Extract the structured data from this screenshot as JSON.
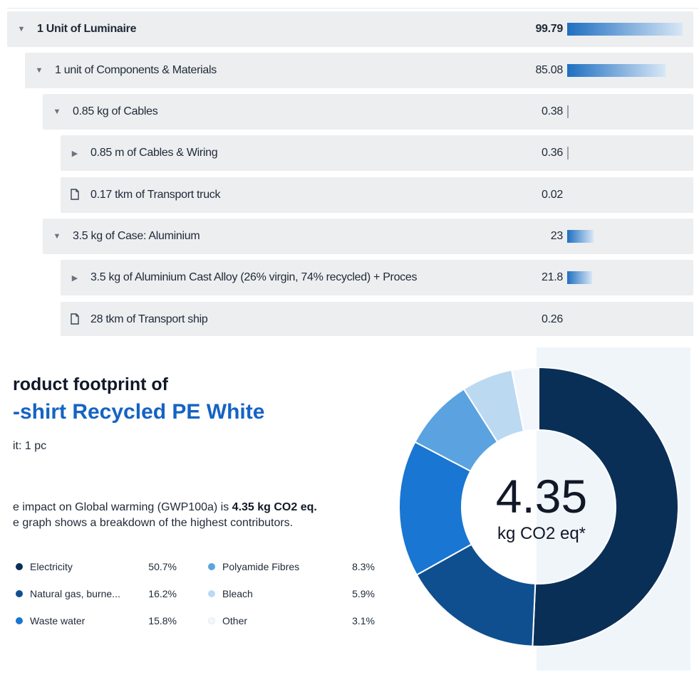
{
  "tree": {
    "rows": [
      {
        "label": "1 Unit of Luminaire",
        "value": "99.79",
        "toggle": "expanded",
        "bold": true,
        "level": 0,
        "bar_fraction": 0.9979
      },
      {
        "label": "1 unit of Components & Materials",
        "value": "85.08",
        "toggle": "expanded",
        "bold": false,
        "level": 1,
        "bar_fraction": 0.8508
      },
      {
        "label": "0.85 kg of Cables",
        "value": "0.38",
        "toggle": "expanded",
        "bold": false,
        "level": 2,
        "bar_fraction": 0.0038
      },
      {
        "label": "0.85 m of Cables & Wiring",
        "value": "0.36",
        "toggle": "collapsed",
        "bold": false,
        "level": 3,
        "bar_fraction": 0.0036
      },
      {
        "label": "0.17 tkm of Transport truck",
        "value": "0.02",
        "toggle": "leaf",
        "bold": false,
        "level": 3,
        "bar_fraction": 0
      },
      {
        "label": "3.5 kg of Case: Aluminium",
        "value": "23",
        "toggle": "expanded",
        "bold": false,
        "level": 2,
        "bar_fraction": 0.23
      },
      {
        "label": "3.5 kg of Aluminium Cast Alloy (26% virgin, 74% recycled) + Proces",
        "value": "21.8",
        "toggle": "collapsed",
        "bold": false,
        "level": 3,
        "bar_fraction": 0.218
      },
      {
        "label": "28 tkm of Transport ship",
        "value": "0.26",
        "toggle": "leaf",
        "bold": false,
        "level": 3,
        "bar_fraction": 0
      }
    ],
    "bar_color": "#1f6fc1"
  },
  "card": {
    "title_line1": "roduct footprint of",
    "title_line2": "-shirt Recycled PE White",
    "unit_line": "it: 1 pc",
    "impact_prefix": "e impact on Global warming (GWP100a) is ",
    "impact_value": "4.35 kg CO2 eq.",
    "impact_suffix": "e graph shows a breakdown of the highest contributors.",
    "donut_value": "4.35",
    "donut_unit": "kg CO2 eq*",
    "accent_color": "#1563c4"
  },
  "chart_data": {
    "type": "pie",
    "variant": "donut",
    "center_value": "4.35",
    "center_label": "kg CO2 eq*",
    "series": [
      {
        "name": "Electricity",
        "value": 50.7,
        "label": "50.7%",
        "color": "#0a2f57"
      },
      {
        "name": "Natural gas, burne...",
        "value": 16.2,
        "label": "16.2%",
        "color": "#0f4f8f"
      },
      {
        "name": "Waste water",
        "value": 15.8,
        "label": "15.8%",
        "color": "#1976d2"
      },
      {
        "name": "Polyamide Fibres",
        "value": 8.3,
        "label": "8.3%",
        "color": "#5aa3e0"
      },
      {
        "name": "Bleach",
        "value": 5.9,
        "label": "5.9%",
        "color": "#bcd9f2"
      },
      {
        "name": "Other",
        "value": 3.1,
        "label": "3.1%",
        "color": "#f3f7fb"
      }
    ]
  }
}
